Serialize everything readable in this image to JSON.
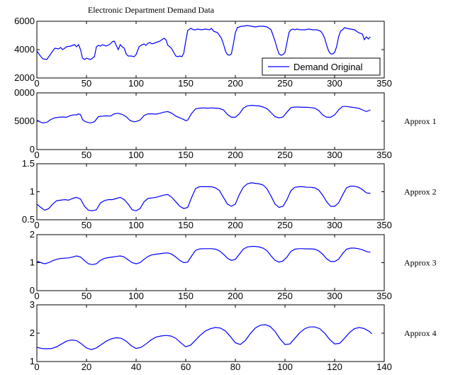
{
  "figure_title": "Electronic Department Demand Data",
  "chart_data": [
    {
      "type": "line",
      "title": "Electronic Department Demand Data",
      "xlim": [
        0,
        350
      ],
      "ylim": [
        2000,
        6000
      ],
      "x_ticks": [
        "0",
        "50",
        "100",
        "150",
        "200",
        "250",
        "300",
        "350"
      ],
      "y_ticks": [
        "2000",
        "4000",
        "6000"
      ],
      "legend": "Demand Original",
      "legend_position": "bottom-right",
      "series": [
        {
          "name": "Demand Original",
          "color": "#0000ff",
          "x": [
            0,
            3,
            6,
            10,
            14,
            18,
            22,
            24,
            26,
            30,
            34,
            38,
            40,
            42,
            44,
            46,
            48,
            50,
            54,
            58,
            60,
            62,
            64,
            66,
            70,
            74,
            76,
            78,
            80,
            82,
            84,
            86,
            88,
            90,
            92,
            95,
            98,
            100,
            103,
            106,
            108,
            110,
            112,
            114,
            116,
            120,
            124,
            128,
            130,
            132,
            134,
            136,
            138,
            140,
            142,
            144,
            146,
            148,
            150,
            152,
            155,
            158,
            160,
            162,
            166,
            170,
            174,
            176,
            178,
            182,
            186,
            188,
            190,
            192,
            194,
            196,
            198,
            200,
            202,
            204,
            206,
            208,
            212,
            216,
            220,
            224,
            228,
            232,
            236,
            238,
            240,
            242,
            244,
            246,
            248,
            250,
            252,
            254,
            256,
            258,
            260,
            262,
            266,
            270,
            274,
            278,
            282,
            286,
            288,
            290,
            292,
            294,
            296,
            298,
            300,
            302,
            304,
            306,
            308,
            310,
            312,
            316,
            320,
            324,
            328,
            330,
            332,
            334,
            336
          ],
          "values": [
            3900,
            3600,
            3350,
            3300,
            3700,
            4100,
            4050,
            4150,
            4000,
            4200,
            4250,
            4350,
            4200,
            4350,
            4000,
            3400,
            3300,
            3400,
            3300,
            3500,
            4200,
            4300,
            4250,
            4350,
            4250,
            4400,
            4550,
            4600,
            4300,
            4000,
            4350,
            4200,
            4100,
            3700,
            3550,
            3550,
            3500,
            3650,
            4200,
            4350,
            4400,
            4300,
            4450,
            4500,
            4400,
            4500,
            4600,
            4800,
            4700,
            4300,
            4200,
            4050,
            3800,
            3550,
            3500,
            3550,
            3500,
            3750,
            4600,
            5350,
            5500,
            5400,
            5400,
            5450,
            5400,
            5450,
            5400,
            5500,
            5300,
            5200,
            4800,
            4400,
            3900,
            3650,
            3600,
            3700,
            4400,
            5200,
            5550,
            5600,
            5650,
            5650,
            5700,
            5650,
            5600,
            5650,
            5650,
            5600,
            5400,
            5000,
            4600,
            4100,
            3700,
            3600,
            3650,
            3800,
            4500,
            5200,
            5400,
            5450,
            5400,
            5450,
            5400,
            5400,
            5450,
            5400,
            5400,
            5300,
            5100,
            4800,
            4300,
            3900,
            3700,
            3700,
            3800,
            4200,
            4900,
            5300,
            5400,
            5550,
            5500,
            5450,
            5400,
            5200,
            5100,
            4700,
            4900,
            4750,
            4900
          ]
        }
      ]
    },
    {
      "type": "line",
      "xlim": [
        0,
        350
      ],
      "ylim": [
        0,
        10000
      ],
      "x_ticks": [
        "0",
        "50",
        "100",
        "150",
        "200",
        "250",
        "300",
        "350"
      ],
      "y_ticks": [
        "0",
        "5000",
        "0000"
      ],
      "side_label": "Approx 1",
      "series": [
        {
          "color": "#0000ff",
          "x": [
            0,
            3,
            6,
            10,
            14,
            18,
            22,
            26,
            30,
            34,
            38,
            40,
            42,
            44,
            46,
            48,
            50,
            54,
            58,
            62,
            66,
            70,
            74,
            78,
            82,
            86,
            90,
            94,
            98,
            100,
            104,
            108,
            112,
            116,
            120,
            124,
            128,
            132,
            136,
            140,
            144,
            148,
            150,
            152,
            156,
            160,
            164,
            168,
            172,
            176,
            180,
            184,
            188,
            192,
            196,
            200,
            204,
            208,
            212,
            216,
            220,
            224,
            228,
            232,
            236,
            240,
            244,
            248,
            252,
            256,
            260,
            264,
            268,
            272,
            276,
            280,
            284,
            288,
            292,
            296,
            300,
            304,
            308,
            312,
            316,
            320,
            324,
            328,
            332,
            336
          ],
          "values": [
            5200,
            4900,
            4700,
            4800,
            5300,
            5600,
            5700,
            5750,
            5700,
            6000,
            6150,
            6100,
            6300,
            6150,
            5300,
            5000,
            4850,
            4700,
            4900,
            5800,
            5900,
            5950,
            5900,
            6300,
            6400,
            6200,
            5800,
            5100,
            4900,
            4950,
            5200,
            6000,
            6300,
            6300,
            6250,
            6400,
            6600,
            6700,
            6400,
            5900,
            5600,
            5300,
            5100,
            5200,
            6400,
            7200,
            7300,
            7350,
            7300,
            7350,
            7300,
            7250,
            7000,
            6200,
            5700,
            5700,
            6300,
            7300,
            7700,
            7800,
            7750,
            7700,
            7500,
            7200,
            6500,
            5800,
            5600,
            5750,
            6600,
            7400,
            7500,
            7500,
            7450,
            7450,
            7400,
            7300,
            6900,
            6100,
            5700,
            5700,
            6100,
            7000,
            7600,
            7600,
            7500,
            7400,
            7300,
            7000,
            6700,
            7000
          ]
        }
      ]
    },
    {
      "type": "line",
      "xlim": [
        0,
        350
      ],
      "ylim": [
        0.5,
        1.5
      ],
      "x_ticks": [
        "0",
        "50",
        "100",
        "150",
        "200",
        "250",
        "300",
        "350"
      ],
      "y_ticks": [
        "0.5",
        "1",
        "1.5"
      ],
      "side_label": "Approx 2",
      "series": [
        {
          "color": "#0000ff",
          "x": [
            0,
            4,
            8,
            12,
            16,
            20,
            24,
            28,
            32,
            36,
            40,
            44,
            48,
            52,
            56,
            60,
            64,
            68,
            72,
            76,
            80,
            84,
            88,
            92,
            96,
            100,
            104,
            108,
            112,
            116,
            120,
            124,
            128,
            132,
            136,
            140,
            144,
            148,
            152,
            156,
            160,
            164,
            168,
            172,
            176,
            180,
            184,
            188,
            192,
            196,
            200,
            204,
            208,
            212,
            216,
            220,
            224,
            228,
            232,
            236,
            240,
            244,
            248,
            252,
            256,
            260,
            264,
            268,
            272,
            276,
            280,
            284,
            288,
            292,
            296,
            300,
            304,
            308,
            312,
            316,
            320,
            324,
            328,
            332,
            336
          ],
          "values": [
            0.78,
            0.72,
            0.67,
            0.7,
            0.78,
            0.84,
            0.85,
            0.86,
            0.85,
            0.88,
            0.9,
            0.87,
            0.74,
            0.67,
            0.66,
            0.68,
            0.8,
            0.84,
            0.86,
            0.86,
            0.88,
            0.9,
            0.86,
            0.78,
            0.68,
            0.66,
            0.7,
            0.82,
            0.88,
            0.89,
            0.9,
            0.92,
            0.94,
            0.95,
            0.9,
            0.82,
            0.74,
            0.7,
            0.72,
            0.9,
            1.06,
            1.09,
            1.09,
            1.09,
            1.09,
            1.07,
            1.02,
            0.9,
            0.78,
            0.74,
            0.78,
            0.95,
            1.08,
            1.14,
            1.16,
            1.15,
            1.14,
            1.12,
            1.05,
            0.92,
            0.78,
            0.72,
            0.74,
            0.86,
            1.02,
            1.08,
            1.09,
            1.09,
            1.08,
            1.08,
            1.07,
            1.03,
            0.94,
            0.82,
            0.74,
            0.74,
            0.8,
            0.94,
            1.07,
            1.1,
            1.1,
            1.08,
            1.04,
            0.98,
            0.97
          ]
        }
      ]
    },
    {
      "type": "line",
      "xlim": [
        0,
        350
      ],
      "ylim": [
        0,
        2
      ],
      "x_ticks": [
        "0",
        "50",
        "100",
        "150",
        "200",
        "250",
        "300",
        "350"
      ],
      "y_ticks": [
        "0",
        "1",
        "2"
      ],
      "side_label": "Approx 3",
      "series": [
        {
          "color": "#0000ff",
          "x": [
            0,
            4,
            8,
            12,
            16,
            20,
            24,
            28,
            32,
            36,
            40,
            44,
            48,
            52,
            56,
            60,
            64,
            68,
            72,
            76,
            80,
            84,
            88,
            92,
            96,
            100,
            104,
            108,
            112,
            116,
            120,
            124,
            128,
            132,
            136,
            140,
            144,
            148,
            152,
            156,
            160,
            164,
            168,
            172,
            176,
            180,
            184,
            188,
            192,
            196,
            200,
            204,
            208,
            212,
            216,
            220,
            224,
            228,
            232,
            236,
            240,
            244,
            248,
            252,
            256,
            260,
            264,
            268,
            272,
            276,
            280,
            284,
            288,
            292,
            296,
            300,
            304,
            308,
            312,
            316,
            320,
            324,
            328,
            332,
            336
          ],
          "values": [
            1.05,
            1.0,
            0.96,
            1.0,
            1.07,
            1.12,
            1.15,
            1.16,
            1.17,
            1.2,
            1.24,
            1.2,
            1.07,
            0.96,
            0.93,
            0.96,
            1.08,
            1.15,
            1.18,
            1.2,
            1.22,
            1.24,
            1.2,
            1.1,
            1.0,
            0.96,
            1.0,
            1.12,
            1.22,
            1.28,
            1.3,
            1.32,
            1.34,
            1.35,
            1.3,
            1.2,
            1.08,
            1.0,
            1.02,
            1.24,
            1.44,
            1.49,
            1.5,
            1.5,
            1.5,
            1.48,
            1.42,
            1.3,
            1.16,
            1.08,
            1.12,
            1.3,
            1.48,
            1.56,
            1.58,
            1.58,
            1.56,
            1.52,
            1.42,
            1.24,
            1.08,
            1.02,
            1.06,
            1.2,
            1.4,
            1.48,
            1.5,
            1.5,
            1.49,
            1.49,
            1.48,
            1.42,
            1.3,
            1.14,
            1.04,
            1.04,
            1.12,
            1.32,
            1.48,
            1.52,
            1.52,
            1.5,
            1.46,
            1.4,
            1.37
          ]
        }
      ]
    },
    {
      "type": "line",
      "xlim": [
        0,
        140
      ],
      "ylim": [
        1,
        3
      ],
      "x_ticks": [
        "0",
        "20",
        "40",
        "60",
        "80",
        "100",
        "120",
        "140"
      ],
      "y_ticks": [
        "1",
        "2",
        "3"
      ],
      "side_label": "Approx 4",
      "series": [
        {
          "color": "#0000ff",
          "x": [
            0,
            2,
            4,
            6,
            8,
            10,
            12,
            14,
            16,
            18,
            20,
            22,
            24,
            26,
            28,
            30,
            32,
            34,
            36,
            38,
            40,
            42,
            44,
            46,
            48,
            50,
            52,
            54,
            56,
            58,
            60,
            62,
            64,
            66,
            68,
            70,
            72,
            74,
            76,
            78,
            80,
            82,
            84,
            86,
            88,
            90,
            92,
            94,
            96,
            98,
            100,
            102,
            104,
            106,
            108,
            110,
            112,
            114,
            116,
            118,
            120,
            122,
            124,
            126,
            128,
            130,
            132,
            134,
            135
          ],
          "values": [
            1.5,
            1.46,
            1.45,
            1.46,
            1.52,
            1.62,
            1.72,
            1.76,
            1.74,
            1.62,
            1.48,
            1.42,
            1.48,
            1.6,
            1.72,
            1.8,
            1.84,
            1.82,
            1.72,
            1.56,
            1.46,
            1.5,
            1.62,
            1.76,
            1.86,
            1.9,
            1.92,
            1.9,
            1.82,
            1.66,
            1.52,
            1.58,
            1.76,
            1.94,
            2.08,
            2.16,
            2.2,
            2.18,
            2.08,
            1.88,
            1.66,
            1.6,
            1.74,
            1.98,
            2.18,
            2.28,
            2.3,
            2.24,
            2.06,
            1.8,
            1.6,
            1.62,
            1.82,
            2.02,
            2.16,
            2.22,
            2.22,
            2.16,
            2.0,
            1.78,
            1.62,
            1.64,
            1.82,
            2.02,
            2.16,
            2.2,
            2.16,
            2.06,
            1.98
          ]
        }
      ]
    }
  ]
}
